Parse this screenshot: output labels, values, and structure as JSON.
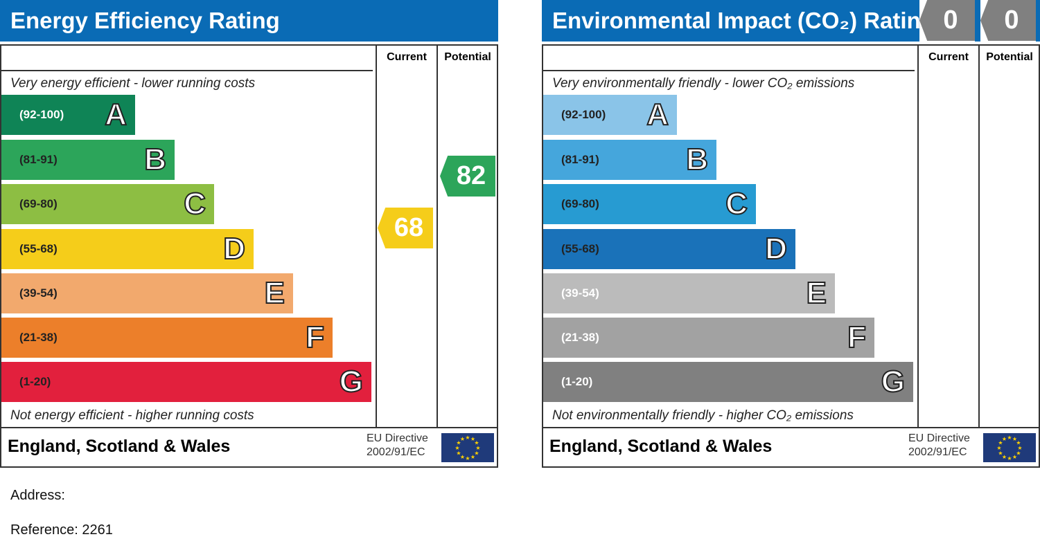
{
  "chart_data": [
    {
      "type": "bar",
      "title": "Energy Efficiency Rating",
      "columns": [
        "Current",
        "Potential"
      ],
      "top_note": "Very energy efficient - lower running costs",
      "bottom_note": "Not energy efficient - higher running costs",
      "bands": [
        {
          "range": "(92-100)",
          "letter": "A",
          "color": "#0f8456"
        },
        {
          "range": "(81-91)",
          "letter": "B",
          "color": "#2ca55a"
        },
        {
          "range": "(69-80)",
          "letter": "C",
          "color": "#8dbe43"
        },
        {
          "range": "(55-68)",
          "letter": "D",
          "color": "#f5cd1a"
        },
        {
          "range": "(39-54)",
          "letter": "E",
          "color": "#f2a96d"
        },
        {
          "range": "(21-38)",
          "letter": "F",
          "color": "#ec7f2a"
        },
        {
          "range": "(1-20)",
          "letter": "G",
          "color": "#e2203d"
        }
      ],
      "current": {
        "value": "68",
        "band": "D",
        "color": "#f5cd1a"
      },
      "potential": {
        "value": "82",
        "band": "B",
        "color": "#2ca55a"
      },
      "region": "England, Scotland & Wales",
      "eu_line1": "EU Directive",
      "eu_line2": "2002/91/EC"
    },
    {
      "type": "bar",
      "title": "Environmental Impact (CO₂) Rating",
      "columns": [
        "Current",
        "Potential"
      ],
      "top_note": "Very environmentally friendly - lower CO₂ emissions",
      "bottom_note": "Not environmentally friendly - higher CO₂ emissions",
      "bands": [
        {
          "range": "(92-100)",
          "letter": "A",
          "color": "#8ac4e8"
        },
        {
          "range": "(81-91)",
          "letter": "B",
          "color": "#45a6dc"
        },
        {
          "range": "(69-80)",
          "letter": "C",
          "color": "#279bd2"
        },
        {
          "range": "(55-68)",
          "letter": "D",
          "color": "#1a72b9"
        },
        {
          "range": "(39-54)",
          "letter": "E",
          "color": "#bbbbbb"
        },
        {
          "range": "(21-38)",
          "letter": "F",
          "color": "#a2a2a2"
        },
        {
          "range": "(1-20)",
          "letter": "G",
          "color": "#808080"
        }
      ],
      "current": {
        "value": "0",
        "color": "#808080"
      },
      "potential": {
        "value": "0",
        "color": "#808080"
      },
      "region": "England, Scotland & Wales",
      "eu_line1": "EU Directive",
      "eu_line2": "2002/91/EC"
    }
  ],
  "address_label": "Address:",
  "reference": "Reference: 2261"
}
